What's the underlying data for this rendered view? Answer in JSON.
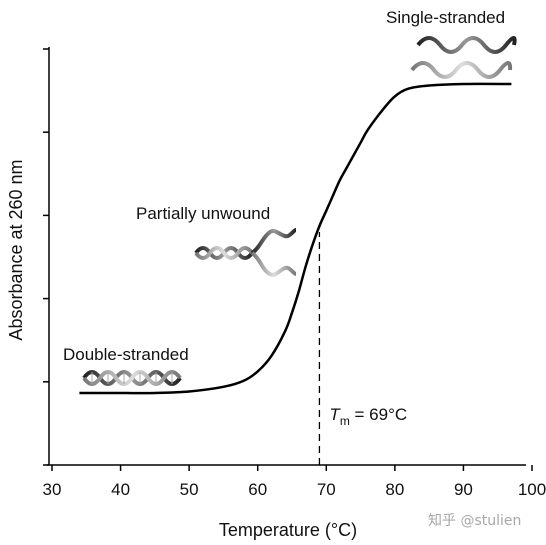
{
  "chart_data": {
    "type": "line",
    "xlabel": "Temperature (°C)",
    "ylabel": "Absorbance at 260 nm",
    "xlim": [
      30,
      100
    ],
    "x_ticks": [
      30,
      40,
      50,
      60,
      70,
      80,
      90,
      100
    ],
    "y_ticks_count": 6,
    "grid": false,
    "series": [
      {
        "x": [
          34,
          40,
          45,
          50,
          55,
          58,
          60,
          62,
          64,
          65,
          66,
          67,
          68,
          69,
          70,
          71,
          72,
          73,
          74,
          75,
          76,
          78,
          80,
          82,
          85,
          90,
          97
        ],
        "y": [
          0.0,
          0.0,
          0.0,
          0.005,
          0.02,
          0.04,
          0.07,
          0.12,
          0.2,
          0.26,
          0.33,
          0.41,
          0.48,
          0.54,
          0.59,
          0.64,
          0.69,
          0.73,
          0.77,
          0.81,
          0.85,
          0.91,
          0.96,
          0.985,
          0.995,
          1.0,
          1.0
        ]
      }
    ],
    "annotations": [
      {
        "id": "double",
        "text": "Double-stranded"
      },
      {
        "id": "partial",
        "text": "Partially unwound"
      },
      {
        "id": "single",
        "text": "Single-stranded"
      }
    ],
    "tm": {
      "x": 69,
      "symbol": "T",
      "subscript": "m",
      "value_text": " = 69°C"
    }
  },
  "watermark": "知乎 @stulien"
}
